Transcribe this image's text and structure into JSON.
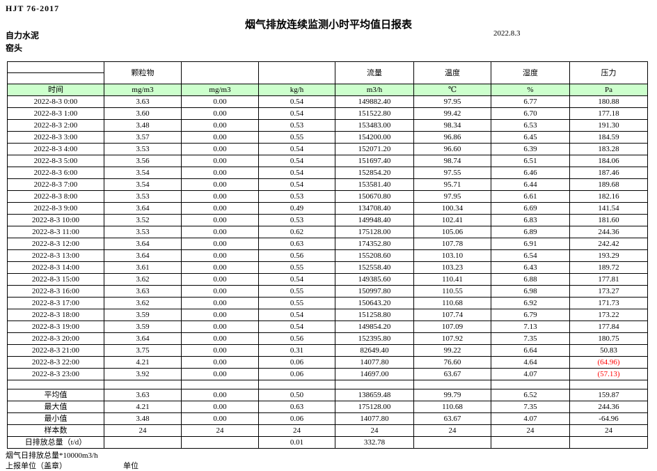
{
  "meta": {
    "standard": "HJT  76-2017",
    "title": "烟气排放连续监测小时平均值日报表",
    "company": "自力水泥",
    "stack": "窑头",
    "date": "2022.8.3"
  },
  "colors": {
    "header_green": "#ccffcc",
    "negative_red": "#ff0000",
    "border": "#000000"
  },
  "table": {
    "group_headers": [
      "",
      "颗粒物",
      "",
      "",
      "流量",
      "温度",
      "湿度",
      "压力"
    ],
    "unit_row": [
      "时间",
      "mg/m3",
      "mg/m3",
      "kg/h",
      "m3/h",
      "℃",
      "%",
      "Pa"
    ],
    "rows": [
      [
        "2022-8-3 0:00",
        "3.63",
        "0.00",
        "0.54",
        "149882.40",
        "97.95",
        "6.77",
        "180.88"
      ],
      [
        "2022-8-3 1:00",
        "3.60",
        "0.00",
        "0.54",
        "151522.80",
        "99.42",
        "6.70",
        "177.18"
      ],
      [
        "2022-8-3 2:00",
        "3.48",
        "0.00",
        "0.53",
        "153483.00",
        "98.34",
        "6.53",
        "191.30"
      ],
      [
        "2022-8-3 3:00",
        "3.57",
        "0.00",
        "0.55",
        "154200.00",
        "96.86",
        "6.45",
        "184.59"
      ],
      [
        "2022-8-3 4:00",
        "3.53",
        "0.00",
        "0.54",
        "152071.20",
        "96.60",
        "6.39",
        "183.28"
      ],
      [
        "2022-8-3 5:00",
        "3.56",
        "0.00",
        "0.54",
        "151697.40",
        "98.74",
        "6.51",
        "184.06"
      ],
      [
        "2022-8-3 6:00",
        "3.54",
        "0.00",
        "0.54",
        "152854.20",
        "97.55",
        "6.46",
        "187.46"
      ],
      [
        "2022-8-3 7:00",
        "3.54",
        "0.00",
        "0.54",
        "153581.40",
        "95.71",
        "6.44",
        "189.68"
      ],
      [
        "2022-8-3 8:00",
        "3.53",
        "0.00",
        "0.53",
        "150670.80",
        "97.95",
        "6.61",
        "182.16"
      ],
      [
        "2022-8-3 9:00",
        "3.64",
        "0.00",
        "0.49",
        "134708.40",
        "100.34",
        "6.69",
        "141.54"
      ],
      [
        "2022-8-3 10:00",
        "3.52",
        "0.00",
        "0.53",
        "149948.40",
        "102.41",
        "6.83",
        "181.60"
      ],
      [
        "2022-8-3 11:00",
        "3.53",
        "0.00",
        "0.62",
        "175128.00",
        "105.06",
        "6.89",
        "244.36"
      ],
      [
        "2022-8-3 12:00",
        "3.64",
        "0.00",
        "0.63",
        "174352.80",
        "107.78",
        "6.91",
        "242.42"
      ],
      [
        "2022-8-3 13:00",
        "3.64",
        "0.00",
        "0.56",
        "155208.60",
        "103.10",
        "6.54",
        "193.29"
      ],
      [
        "2022-8-3 14:00",
        "3.61",
        "0.00",
        "0.55",
        "152558.40",
        "103.23",
        "6.43",
        "189.72"
      ],
      [
        "2022-8-3 15:00",
        "3.62",
        "0.00",
        "0.54",
        "149385.60",
        "110.41",
        "6.88",
        "177.81"
      ],
      [
        "2022-8-3 16:00",
        "3.63",
        "0.00",
        "0.55",
        "150997.80",
        "110.55",
        "6.98",
        "173.27"
      ],
      [
        "2022-8-3 17:00",
        "3.62",
        "0.00",
        "0.55",
        "150643.20",
        "110.68",
        "6.92",
        "171.73"
      ],
      [
        "2022-8-3 18:00",
        "3.59",
        "0.00",
        "0.54",
        "151258.80",
        "107.74",
        "6.79",
        "173.22"
      ],
      [
        "2022-8-3 19:00",
        "3.59",
        "0.00",
        "0.54",
        "149854.20",
        "107.09",
        "7.13",
        "177.84"
      ],
      [
        "2022-8-3 20:00",
        "3.64",
        "0.00",
        "0.56",
        "152395.80",
        "107.92",
        "7.35",
        "180.75"
      ],
      [
        "2022-8-3 21:00",
        "3.75",
        "0.00",
        "0.31",
        "82649.40",
        "99.22",
        "6.64",
        "50.83"
      ],
      [
        "2022-8-3 22:00",
        "4.21",
        "0.00",
        "0.06",
        "14077.80",
        "76.60",
        "4.64",
        "(64.96)"
      ],
      [
        "2022-8-3 23:00",
        "3.92",
        "0.00",
        "0.06",
        "14697.00",
        "63.67",
        "4.07",
        "(57.13)"
      ]
    ],
    "summary": [
      [
        "平均值",
        "3.63",
        "0.00",
        "0.50",
        "138659.48",
        "99.79",
        "6.52",
        "159.87"
      ],
      [
        "最大值",
        "4.21",
        "0.00",
        "0.63",
        "175128.00",
        "110.68",
        "7.35",
        "244.36"
      ],
      [
        "最小值",
        "3.48",
        "0.00",
        "0.06",
        "14077.80",
        "63.67",
        "4.07",
        "-64.96"
      ],
      [
        "样本数",
        "24",
        "24",
        "24",
        "24",
        "24",
        "24",
        "24"
      ],
      [
        "日排放总量（t/d）",
        "",
        "",
        "0.01",
        "332.78",
        "",
        "",
        ""
      ]
    ]
  },
  "footer": {
    "note": "烟气日排放总量*10000m3/h",
    "report_unit_label": "上报单位（盖章）",
    "unit_label": "单位"
  }
}
